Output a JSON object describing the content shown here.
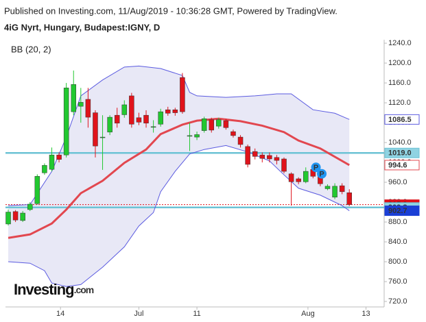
{
  "chart_data": {
    "type": "candlestick",
    "header": "Published on Investing.com, 11/Aug/2019 - 10:36:28 GMT, Powered by TradingView.",
    "title": "4iG Nyrt, Hungary, Budapest:IGNY, D",
    "indicator": "BB (20, 2)",
    "logo": "Investing",
    "logo_suffix": ".com",
    "up_color": "#22c830",
    "down_color": "#e0131b",
    "xlim": [
      -0.38,
      51.8
    ],
    "xticks": [
      {
        "value": 7.2,
        "label": "14"
      },
      {
        "value": 18,
        "label": "Jul"
      },
      {
        "value": 26,
        "label": "11"
      },
      {
        "value": 41.3,
        "label": "Aug"
      },
      {
        "value": 49.3,
        "label": "13"
      }
    ],
    "ylim": [
      709,
      1247
    ],
    "yticks": [
      {
        "value": 720,
        "label": "720.0"
      },
      {
        "value": 760,
        "label": "760.0"
      },
      {
        "value": 800,
        "label": "800.0"
      },
      {
        "value": 840,
        "label": "840.0"
      },
      {
        "value": 880,
        "label": "880.0"
      },
      {
        "value": 920,
        "label": "920.0"
      },
      {
        "value": 960,
        "label": "960.0"
      },
      {
        "value": 1000,
        "label": "1000.0"
      },
      {
        "value": 1040,
        "label": "1040.0"
      },
      {
        "value": 1080,
        "label": "1080.0"
      },
      {
        "value": 1120,
        "label": "1120.0"
      },
      {
        "value": 1160,
        "label": "1160.0"
      },
      {
        "value": 1200,
        "label": "1200.0"
      },
      {
        "value": 1240,
        "label": "1240.0"
      }
    ],
    "open": [
      876,
      901,
      883,
      905,
      917,
      979,
      986,
      1015,
      1015,
      1102,
      1113,
      1127,
      1100,
      1051,
      1061,
      1095,
      1096,
      1134,
      1090,
      1095,
      1072,
      1077,
      1106,
      1106,
      1171,
      1054,
      1051,
      1064,
      1086,
      1073,
      1084,
      1062,
      1051,
      1032,
      1022,
      1015,
      1014,
      1010,
      1007,
      977,
      967,
      961,
      986,
      974,
      947,
      930,
      953,
      939
    ],
    "high": [
      905,
      904,
      902,
      920,
      976,
      998,
      1030,
      1020,
      1160,
      1185,
      1150,
      1150,
      1105,
      1095,
      1095,
      1110,
      1125,
      1140,
      1100,
      1105,
      1085,
      1108,
      1112,
      1110,
      1180,
      1080,
      1062,
      1092,
      1090,
      1090,
      1088,
      1066,
      1055,
      1036,
      1028,
      1020,
      1020,
      1015,
      1010,
      980,
      970,
      990,
      992,
      978,
      956,
      958,
      958,
      946
    ],
    "low": [
      873,
      880,
      880,
      902,
      915,
      975,
      982,
      1000,
      1010,
      1095,
      1080,
      1070,
      1010,
      985,
      1055,
      1070,
      1090,
      1070,
      1075,
      1070,
      1060,
      1072,
      1094,
      1094,
      1098,
      1023,
      1045,
      1060,
      1060,
      1068,
      1066,
      1050,
      1030,
      990,
      1006,
      1000,
      1000,
      996,
      978,
      913,
      956,
      958,
      968,
      952,
      944,
      926,
      936,
      912
    ],
    "close": [
      900,
      884,
      898,
      916,
      972,
      994,
      1015,
      1006,
      1150,
      1157,
      1121,
      1091,
      1033,
      1051,
      1091,
      1079,
      1116,
      1077,
      1081,
      1079,
      1072,
      1102,
      1099,
      1100,
      1102,
      1054,
      1056,
      1088,
      1065,
      1086,
      1070,
      1054,
      1036,
      996,
      1012,
      1008,
      1007,
      1004,
      982,
      961,
      961,
      982,
      972,
      957,
      952,
      952,
      941,
      915
    ],
    "bands": [
      {
        "name": "upper",
        "color": "#5a5ae0",
        "x": [
          0,
          3,
          6,
          8,
          10,
          13,
          16,
          18,
          21,
          24,
          25,
          26,
          30,
          34,
          37,
          39,
          42,
          45,
          47
        ],
        "values": [
          913,
          915,
          982,
          1051,
          1134,
          1166,
          1192,
          1194,
          1189,
          1175,
          1141,
          1134,
          1131,
          1134,
          1138,
          1138,
          1106,
          1099,
          1086.5
        ]
      },
      {
        "name": "middle",
        "color": "#e2474f",
        "x": [
          0,
          3,
          6,
          8,
          10,
          13,
          16,
          19,
          21,
          24,
          26,
          29,
          32,
          35,
          38,
          40,
          43,
          47
        ],
        "values": [
          848,
          855,
          877,
          905,
          938,
          963,
          999,
          1026,
          1057,
          1076,
          1084,
          1088,
          1083,
          1074,
          1061,
          1044,
          1028,
          994.6
        ]
      },
      {
        "name": "lower",
        "color": "#5a5ae0",
        "x": [
          0,
          3,
          5,
          6,
          8,
          10,
          13,
          16,
          18,
          20,
          21,
          23,
          25,
          27,
          30,
          33,
          36,
          38,
          40,
          43,
          46,
          47
        ],
        "values": [
          800,
          797,
          782,
          757,
          750,
          754,
          789,
          830,
          872,
          899,
          941,
          982,
          1017,
          1026,
          1034,
          1021,
          1003,
          975,
          948,
          934,
          913,
          902.7
        ]
      }
    ],
    "band_fill": "#d8d8f0",
    "hlines": [
      {
        "value": 1019.0,
        "color": "#6cc3d5",
        "style": "solid"
      },
      {
        "value": 909.3,
        "color": "#6cc3d5",
        "style": "solid"
      },
      {
        "value": 915.0,
        "color": "#e0131b",
        "style": "dotted"
      }
    ],
    "price_labels": [
      {
        "value": 1086.5,
        "bg": "#ffffff",
        "fg": "#222222",
        "border": "#5a5ae0"
      },
      {
        "value": {
          "value": 1019.0,
          "label": "1019.0"
        },
        "bg": "#8fd3e2",
        "fg": "#222222",
        "border": "#6cc3d5"
      },
      {
        "value": 994.6,
        "bg": "#ffffff",
        "fg": "#e0131b",
        "border": "#e2474f"
      },
      {
        "value": {
          "value": 915.0,
          "label": "915.0"
        },
        "bg": "#e0131b",
        "fg": "#ffffff",
        "border": "#e0131b"
      },
      {
        "value": 909.3,
        "bg": "#8fd3e2",
        "fg": "#222222",
        "border": "#6cc3d5"
      },
      {
        "value": 902.7,
        "bg": "#1a3fd6",
        "fg": "#ffffff",
        "border": "#1a3fd6"
      }
    ],
    "markers": [
      {
        "label": "P",
        "x": 42.4,
        "value": 990
      },
      {
        "label": "P",
        "x": 43.2,
        "value": 977
      }
    ]
  }
}
